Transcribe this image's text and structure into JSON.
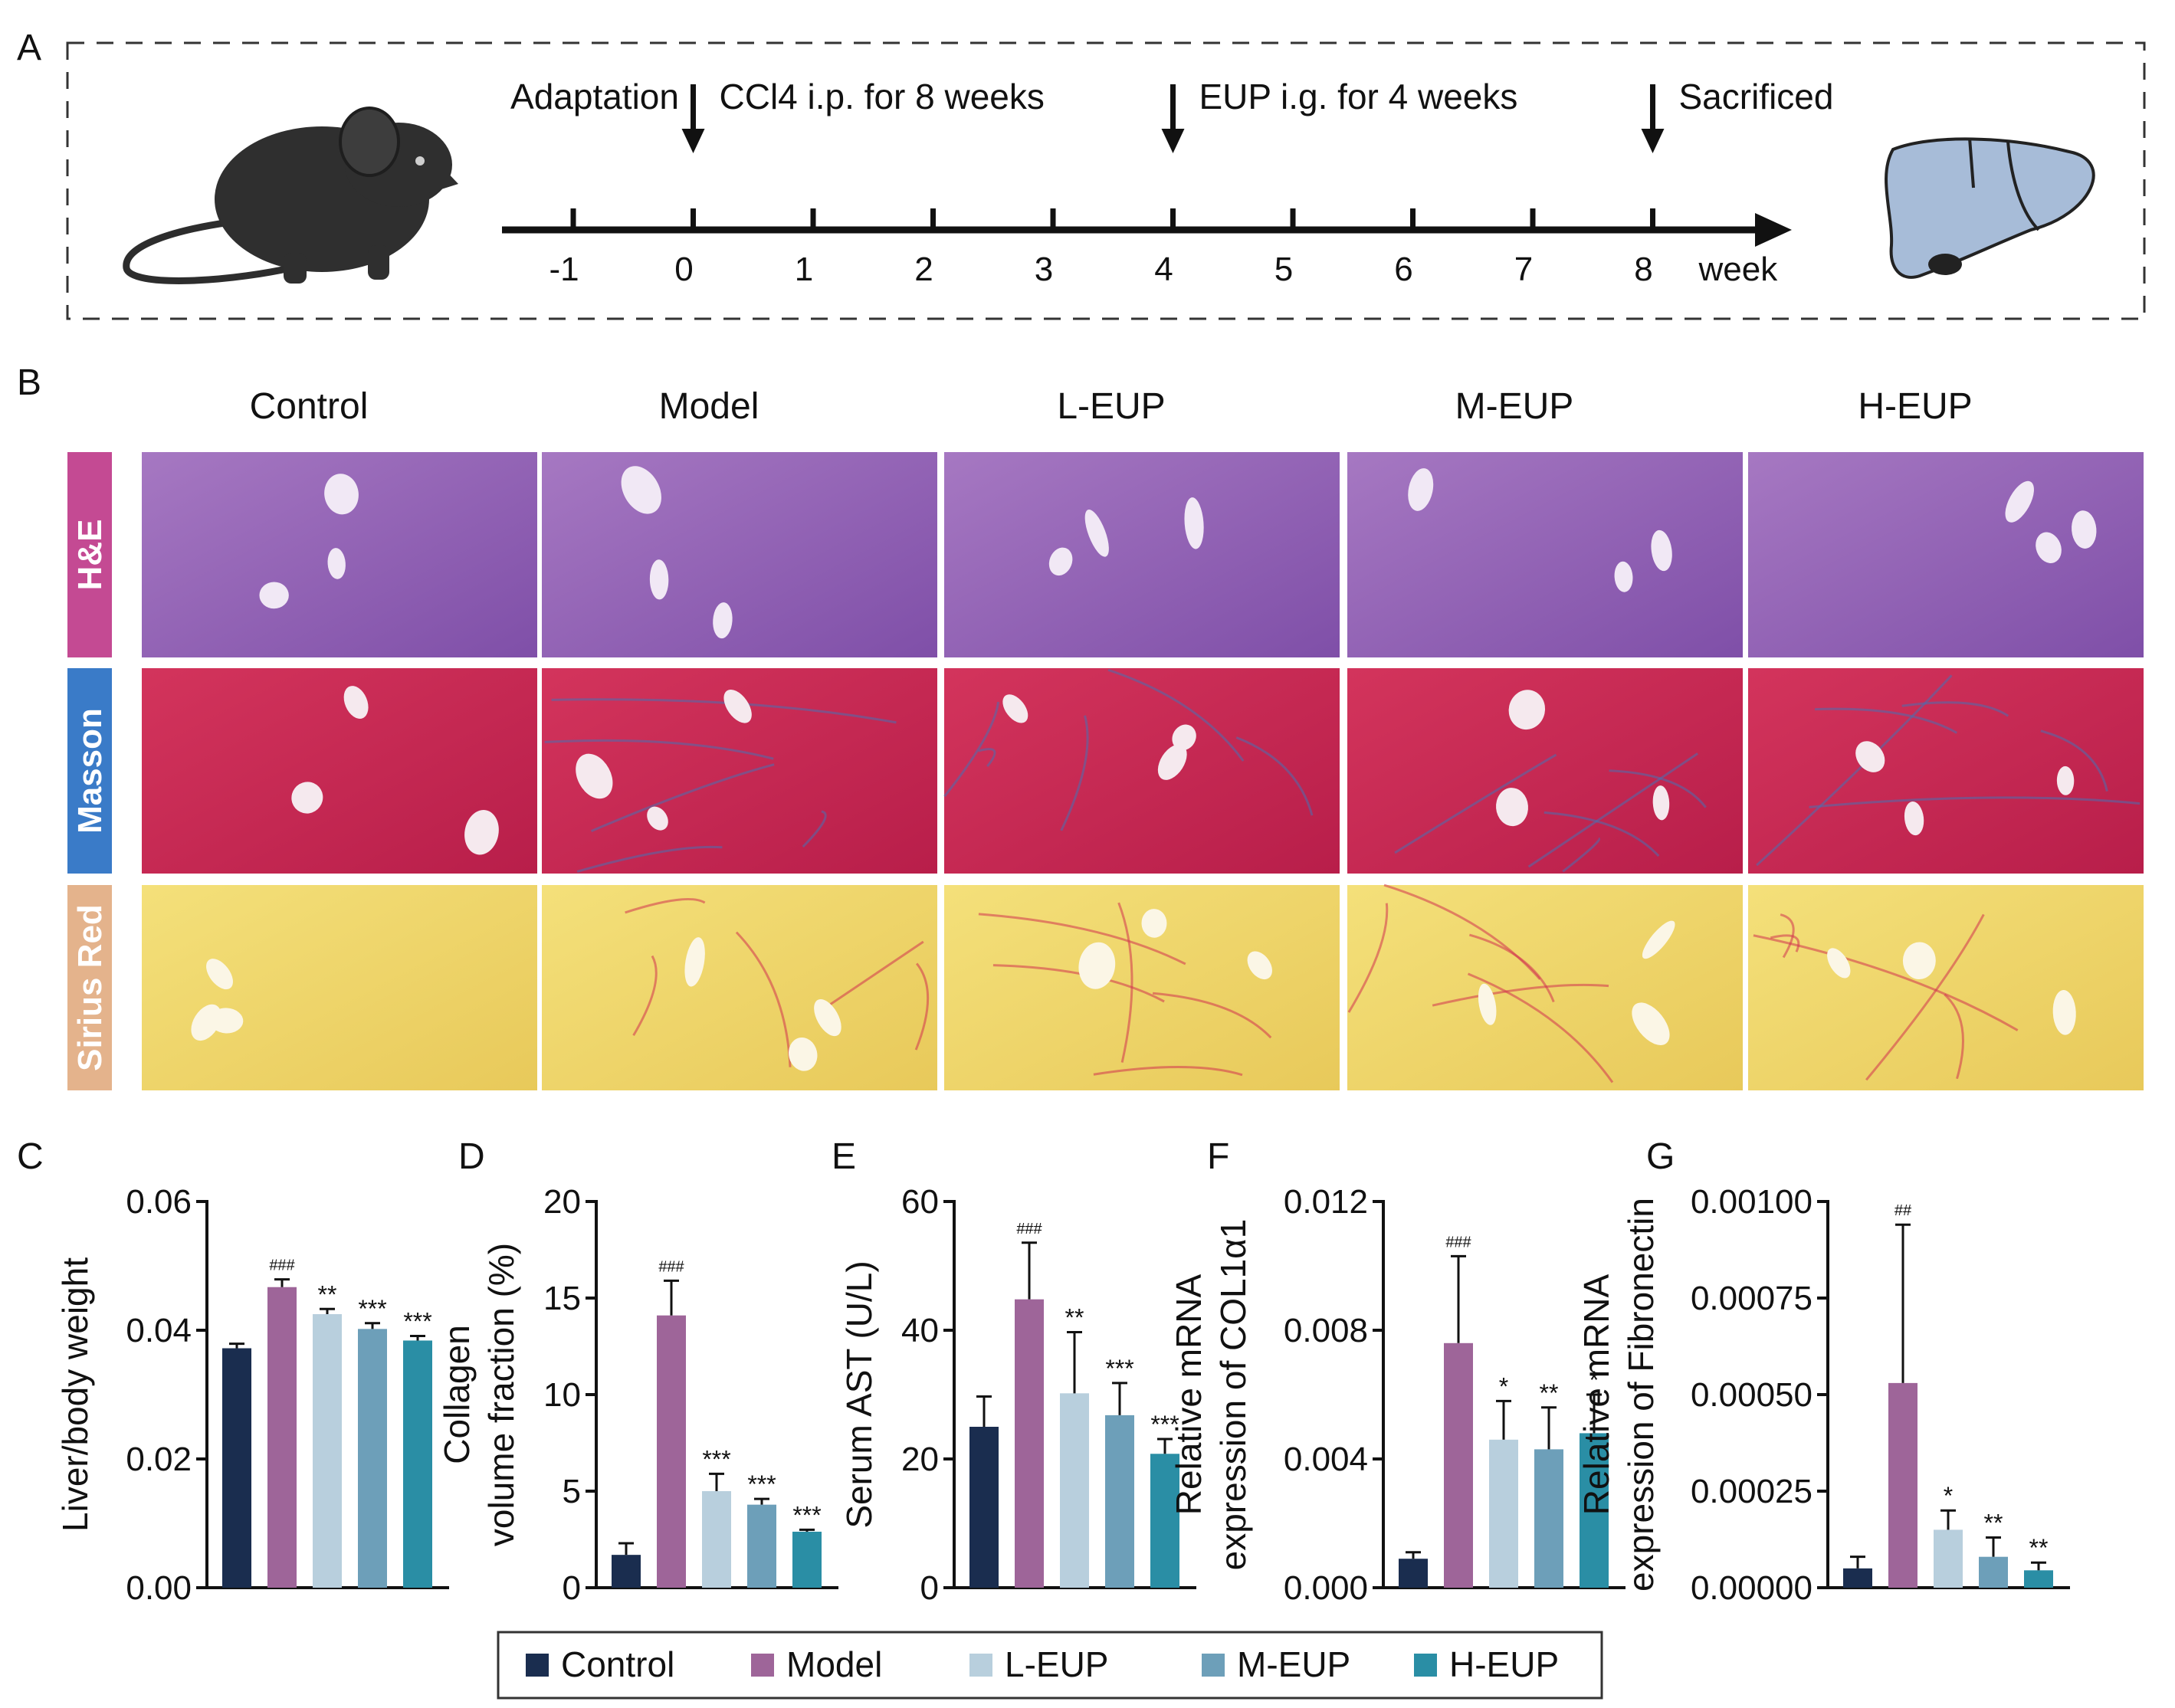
{
  "panels": {
    "A": "A",
    "B": "B",
    "C": "C",
    "D": "D",
    "E": "E",
    "F": "F",
    "G": "G"
  },
  "timeline": {
    "ticks": [
      "-1",
      "0",
      "1",
      "2",
      "3",
      "4",
      "5",
      "6",
      "7",
      "8"
    ],
    "unit": "week",
    "events": [
      {
        "week": -1,
        "label": "Adaptation",
        "arrow": false
      },
      {
        "week": 0,
        "label": "CCl4 i.p. for 8 weeks",
        "arrow": true
      },
      {
        "week": 4,
        "label": "EUP i.g. for 4 weeks",
        "arrow": true
      },
      {
        "week": 8,
        "label": "Sacrificed",
        "arrow": true
      }
    ],
    "icons": [
      "mouse-icon",
      "liver-icon"
    ]
  },
  "histology": {
    "columns": [
      "Control",
      "Model",
      "L-EUP",
      "M-EUP",
      "H-EUP"
    ],
    "rows": [
      {
        "label": "H&E",
        "color": "#c44a93",
        "tissue": "#a678c2",
        "tissue2": "#7f4fa8",
        "vessel": "#f1e8f5"
      },
      {
        "label": "Masson",
        "color": "#3a7bc8",
        "tissue": "#d3345c",
        "tissue2": "#b81e4a",
        "vessel": "#f5e9ee"
      },
      {
        "label": "Sirius Red",
        "color": "#e4b38c",
        "tissue": "#f4e07a",
        "tissue2": "#e8c95a",
        "vessel": "#fbf6e6"
      }
    ]
  },
  "legend": {
    "items": [
      {
        "label": "Control",
        "color": "#1a2d4f"
      },
      {
        "label": "Model",
        "color": "#9e6599"
      },
      {
        "label": "L-EUP",
        "color": "#b8cfdd"
      },
      {
        "label": "M-EUP",
        "color": "#6d9fb9"
      },
      {
        "label": "H-EUP",
        "color": "#2a8ea5"
      }
    ]
  },
  "chart_data": [
    {
      "type": "bar",
      "panel": "C",
      "categories": [
        "Control",
        "Model",
        "L-EUP",
        "M-EUP",
        "H-EUP"
      ],
      "values": [
        0.0372,
        0.0467,
        0.0425,
        0.0402,
        0.0384
      ],
      "errors": [
        0.0007,
        0.0012,
        0.0008,
        0.0009,
        0.0007
      ],
      "annotations": [
        "",
        "###",
        "**",
        "***",
        "***"
      ],
      "ylabel": [
        "Liver/body weight"
      ],
      "ylim": [
        0,
        0.06
      ],
      "yticks": [
        "0.00",
        "0.02",
        "0.04",
        "0.06"
      ]
    },
    {
      "type": "bar",
      "panel": "D",
      "categories": [
        "Control",
        "Model",
        "L-EUP",
        "M-EUP",
        "H-EUP"
      ],
      "values": [
        1.7,
        14.1,
        5.0,
        4.3,
        2.9
      ],
      "errors": [
        0.6,
        1.8,
        0.9,
        0.3,
        0.1
      ],
      "annotations": [
        "",
        "###",
        "***",
        "***",
        "***"
      ],
      "ylabel": [
        "Collagen",
        "volume fraction (%)"
      ],
      "ylim": [
        0,
        20
      ],
      "yticks": [
        "0",
        "5",
        "10",
        "15",
        "20"
      ]
    },
    {
      "type": "bar",
      "panel": "E",
      "categories": [
        "Control",
        "Model",
        "L-EUP",
        "M-EUP",
        "H-EUP"
      ],
      "values": [
        25.0,
        44.8,
        30.2,
        26.8,
        20.8
      ],
      "errors": [
        4.7,
        8.8,
        9.5,
        5.0,
        2.3
      ],
      "annotations": [
        "",
        "###",
        "**",
        "***",
        "***"
      ],
      "ylabel": [
        "Serum AST (U/L)"
      ],
      "ylim": [
        0,
        60
      ],
      "yticks": [
        "0",
        "20",
        "40",
        "60"
      ]
    },
    {
      "type": "bar",
      "panel": "F",
      "categories": [
        "Control",
        "Model",
        "L-EUP",
        "M-EUP",
        "H-EUP"
      ],
      "values": [
        0.0009,
        0.0076,
        0.0046,
        0.0043,
        0.0048
      ],
      "errors": [
        0.0002,
        0.0027,
        0.0012,
        0.0013,
        0.0012
      ],
      "annotations": [
        "",
        "###",
        "*",
        "**",
        "*"
      ],
      "ylabel": [
        "Relative mRNA",
        "expression of COL1α1"
      ],
      "ylim": [
        0,
        0.012
      ],
      "yticks": [
        "0.000",
        "0.004",
        "0.008",
        "0.012"
      ]
    },
    {
      "type": "bar",
      "panel": "G",
      "categories": [
        "Control",
        "Model",
        "L-EUP",
        "M-EUP",
        "H-EUP"
      ],
      "values": [
        5e-05,
        0.00053,
        0.00015,
        8e-05,
        4.5e-05
      ],
      "errors": [
        3e-05,
        0.00041,
        5e-05,
        5e-05,
        2e-05
      ],
      "annotations": [
        "",
        "##",
        "*",
        "**",
        "**"
      ],
      "ylabel": [
        "Relative mRNA",
        "expression of Fibronectin"
      ],
      "ylim": [
        0,
        0.001
      ],
      "yticks": [
        "0.00000",
        "0.00025",
        "0.00050",
        "0.00075",
        "0.00100"
      ]
    }
  ]
}
